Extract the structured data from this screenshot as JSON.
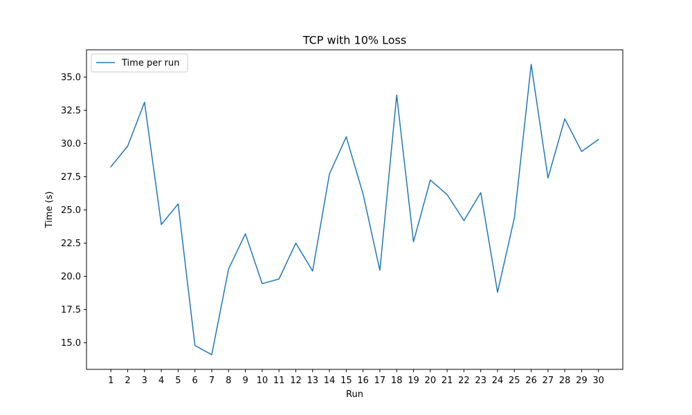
{
  "chart_data": {
    "type": "line",
    "title": "TCP with 10% Loss",
    "xlabel": "Run",
    "ylabel": "Time (s)",
    "x": [
      1,
      2,
      3,
      4,
      5,
      6,
      7,
      8,
      9,
      10,
      11,
      12,
      13,
      14,
      15,
      16,
      17,
      18,
      19,
      20,
      21,
      22,
      23,
      24,
      25,
      26,
      27,
      28,
      29,
      30
    ],
    "series": [
      {
        "name": "Time per run",
        "color": "#1f77b4",
        "values": [
          28.25,
          29.8,
          33.1,
          23.9,
          25.45,
          14.8,
          14.1,
          20.55,
          23.2,
          19.45,
          19.8,
          22.5,
          20.4,
          27.7,
          30.5,
          26.2,
          20.45,
          33.65,
          22.6,
          27.25,
          26.15,
          24.2,
          26.3,
          18.8,
          24.4,
          35.95,
          27.4,
          31.85,
          29.4,
          30.3
        ]
      }
    ],
    "xlim": [
      -0.45,
      31.45
    ],
    "ylim": [
      13.0,
      37.05
    ],
    "x_ticks": [
      "1",
      "2",
      "3",
      "4",
      "5",
      "6",
      "7",
      "8",
      "9",
      "10",
      "11",
      "12",
      "13",
      "14",
      "15",
      "16",
      "17",
      "18",
      "19",
      "20",
      "21",
      "22",
      "23",
      "24",
      "25",
      "26",
      "27",
      "28",
      "29",
      "30"
    ],
    "y_ticks": [
      "15.0",
      "17.5",
      "20.0",
      "22.5",
      "25.0",
      "27.5",
      "30.0",
      "32.5",
      "35.0"
    ],
    "grid": false,
    "legend_position": "upper left"
  }
}
